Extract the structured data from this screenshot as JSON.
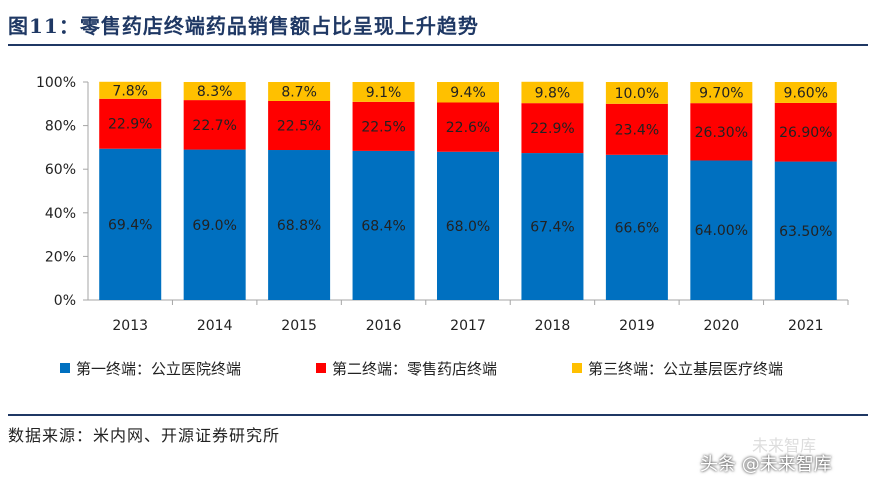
{
  "header": {
    "title": "图11：零售药店终端药品销售额占比呈现上升趋势"
  },
  "footer": {
    "source": "数据来源：米内网、开源证券研究所",
    "watermark_small": "未来智库",
    "watermark_main": "头条 @未来智库"
  },
  "colors": {
    "s1": "#0070c0",
    "s2": "#ff0000",
    "s3": "#ffc000"
  },
  "chart_data": {
    "type": "bar",
    "stacked": true,
    "categories": [
      "2013",
      "2014",
      "2015",
      "2016",
      "2017",
      "2018",
      "2019",
      "2020",
      "2021"
    ],
    "yticks": [
      "0%",
      "20%",
      "40%",
      "60%",
      "80%",
      "100%"
    ],
    "ylim": [
      0,
      100
    ],
    "series": [
      {
        "name": "第一终端：公立医院终端",
        "values": [
          69.4,
          69.0,
          68.8,
          68.4,
          68.0,
          67.4,
          66.6,
          64.0,
          63.5
        ],
        "labels": [
          "69.4%",
          "69.0%",
          "68.8%",
          "68.4%",
          "68.0%",
          "67.4%",
          "66.6%",
          "64.00%",
          "63.50%"
        ]
      },
      {
        "name": "第二终端：零售药店终端",
        "values": [
          22.9,
          22.7,
          22.5,
          22.5,
          22.6,
          22.9,
          23.4,
          26.3,
          26.9
        ],
        "labels": [
          "22.9%",
          "22.7%",
          "22.5%",
          "22.5%",
          "22.6%",
          "22.9%",
          "23.4%",
          "26.30%",
          "26.90%"
        ]
      },
      {
        "name": "第三终端：公立基层医疗终端",
        "values": [
          7.8,
          8.3,
          8.7,
          9.1,
          9.4,
          9.8,
          10.0,
          9.7,
          9.6
        ],
        "labels": [
          "7.8%",
          "8.3%",
          "8.7%",
          "9.1%",
          "9.4%",
          "9.8%",
          "10.0%",
          "9.70%",
          "9.60%"
        ]
      }
    ]
  }
}
